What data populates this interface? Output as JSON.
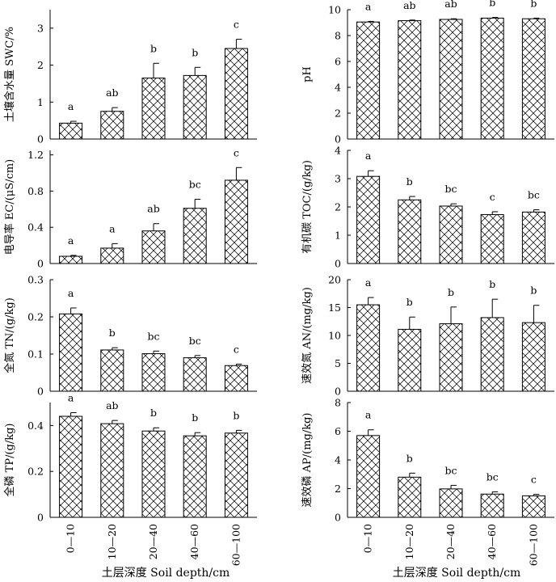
{
  "categories": [
    "0—10",
    "10—20",
    "20—40",
    "40—60",
    "60—100"
  ],
  "xlabel": "土层深度  Soil depth/cm",
  "chart_data": [
    {
      "type": "bar",
      "panel": "swc",
      "ylabel": "土壤含水量 SWC/%",
      "ylim": [
        0,
        3.5
      ],
      "yticks": [
        "0",
        "1",
        "2",
        "3"
      ],
      "ytick_values": [
        0,
        1,
        2,
        3
      ],
      "values": [
        0.43,
        0.75,
        1.65,
        1.72,
        2.45
      ],
      "errors": [
        0.05,
        0.1,
        0.4,
        0.22,
        0.25
      ],
      "letters": [
        "a",
        "ab",
        "b",
        "b",
        "c"
      ]
    },
    {
      "type": "bar",
      "panel": "ph",
      "ylabel": "pH",
      "ylim": [
        0,
        10
      ],
      "yticks": [
        "0",
        "2",
        "4",
        "6",
        "8",
        "10"
      ],
      "ytick_values": [
        0,
        2,
        4,
        6,
        8,
        10
      ],
      "values": [
        9.05,
        9.15,
        9.25,
        9.35,
        9.3
      ],
      "errors": [
        0.05,
        0.05,
        0.05,
        0.05,
        0.05
      ],
      "letters": [
        "a",
        "ab",
        "ab",
        "b",
        "b"
      ]
    },
    {
      "type": "bar",
      "panel": "ec",
      "ylabel": "电导率 EC/(μS/cm)",
      "ylim": [
        0,
        1.25
      ],
      "yticks": [
        "0",
        "0.4",
        "0.8",
        "1.2"
      ],
      "ytick_values": [
        0,
        0.4,
        0.8,
        1.2
      ],
      "values": [
        0.08,
        0.17,
        0.36,
        0.61,
        0.92
      ],
      "errors": [
        0.01,
        0.05,
        0.08,
        0.1,
        0.14
      ],
      "letters": [
        "a",
        "a",
        "ab",
        "bc",
        "c"
      ]
    },
    {
      "type": "bar",
      "panel": "toc",
      "ylabel": "有机碳 TOC/(g/kg)",
      "ylim": [
        0,
        4
      ],
      "yticks": [
        "0",
        "1",
        "2",
        "3",
        "4"
      ],
      "ytick_values": [
        0,
        1,
        2,
        3,
        4
      ],
      "values": [
        3.08,
        2.25,
        2.03,
        1.73,
        1.82
      ],
      "errors": [
        0.2,
        0.12,
        0.08,
        0.1,
        0.08
      ],
      "letters": [
        "a",
        "b",
        "bc",
        "c",
        "bc"
      ]
    },
    {
      "type": "bar",
      "panel": "tn",
      "ylabel": "全氮 TN/(g/kg)",
      "ylim": [
        0,
        0.3
      ],
      "yticks": [
        "0",
        "0.1",
        "0.2",
        "0.3"
      ],
      "ytick_values": [
        0,
        0.1,
        0.2,
        0.3
      ],
      "values": [
        0.208,
        0.111,
        0.101,
        0.09,
        0.069
      ],
      "errors": [
        0.016,
        0.006,
        0.007,
        0.006,
        0.004
      ],
      "letters": [
        "a",
        "b",
        "bc",
        "bc",
        "c"
      ]
    },
    {
      "type": "bar",
      "panel": "an",
      "ylabel": "速效氮 AN/(mg/kg)",
      "ylim": [
        0,
        20
      ],
      "yticks": [
        "0",
        "5",
        "10",
        "15",
        "20"
      ],
      "ytick_values": [
        0,
        5,
        10,
        15,
        20
      ],
      "values": [
        15.5,
        11.1,
        12.1,
        13.2,
        12.3
      ],
      "errors": [
        1.3,
        2.2,
        3.0,
        3.3,
        3.1
      ],
      "letters": [
        "a",
        "b",
        "b",
        "b",
        "b"
      ]
    },
    {
      "type": "bar",
      "panel": "tp",
      "ylabel": "全磷 TP/(g/kg)",
      "ylim": [
        0,
        0.5
      ],
      "yticks": [
        "0",
        "0.2",
        "0.4"
      ],
      "ytick_values": [
        0,
        0.2,
        0.4
      ],
      "values": [
        0.44,
        0.408,
        0.376,
        0.355,
        0.367
      ],
      "errors": [
        0.016,
        0.014,
        0.014,
        0.014,
        0.012
      ],
      "letters": [
        "a",
        "ab",
        "b",
        "b",
        "b"
      ]
    },
    {
      "type": "bar",
      "panel": "ap",
      "ylabel": "速效磷 AP/(mg/kg)",
      "ylim": [
        0,
        8
      ],
      "yticks": [
        "0",
        "2",
        "4",
        "6",
        "8"
      ],
      "ytick_values": [
        0,
        2,
        4,
        6,
        8
      ],
      "values": [
        5.7,
        2.8,
        1.98,
        1.62,
        1.5
      ],
      "errors": [
        0.4,
        0.28,
        0.25,
        0.16,
        0.1
      ],
      "letters": [
        "a",
        "b",
        "bc",
        "bc",
        "c"
      ]
    }
  ]
}
